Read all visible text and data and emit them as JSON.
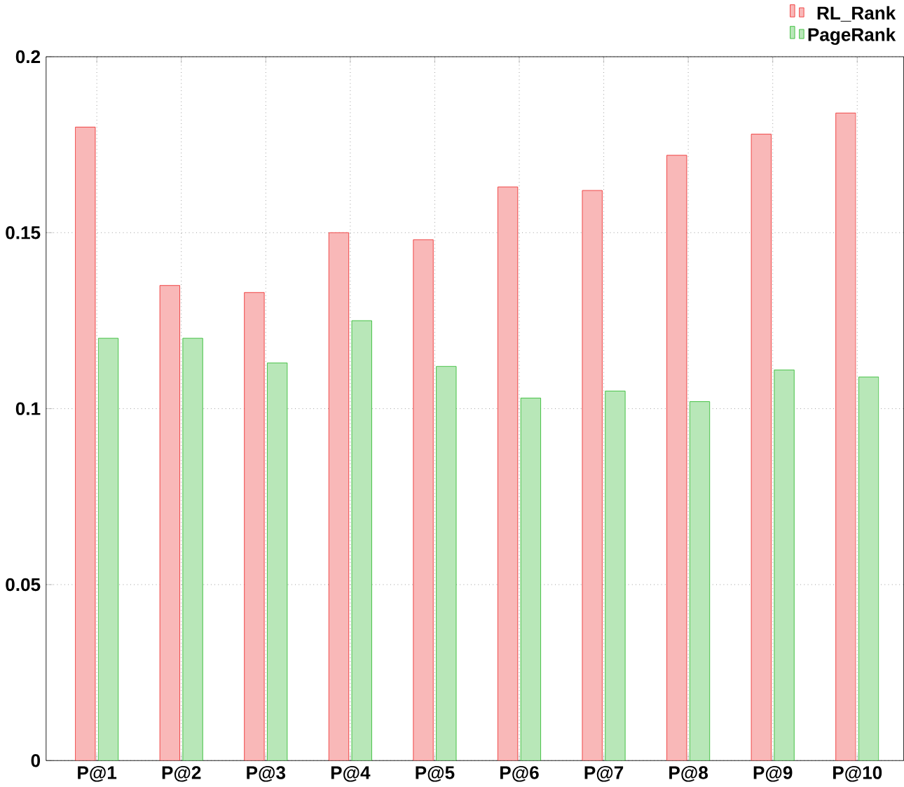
{
  "chart_data": {
    "type": "bar",
    "categories": [
      "P@1",
      "P@2",
      "P@3",
      "P@4",
      "P@5",
      "P@6",
      "P@7",
      "P@8",
      "P@9",
      "P@10"
    ],
    "series": [
      {
        "name": "RL_Rank",
        "color": "#ee3333",
        "values": [
          0.18,
          0.135,
          0.133,
          0.15,
          0.148,
          0.163,
          0.162,
          0.172,
          0.178,
          0.184
        ]
      },
      {
        "name": "PageRank",
        "color": "#33bb33",
        "values": [
          0.12,
          0.12,
          0.113,
          0.125,
          0.112,
          0.103,
          0.105,
          0.102,
          0.111,
          0.109
        ]
      }
    ],
    "ylim": [
      0,
      0.2
    ],
    "yticks": [
      0,
      0.05,
      0.1,
      0.15,
      0.2
    ],
    "grid": true,
    "legend": "top right"
  }
}
